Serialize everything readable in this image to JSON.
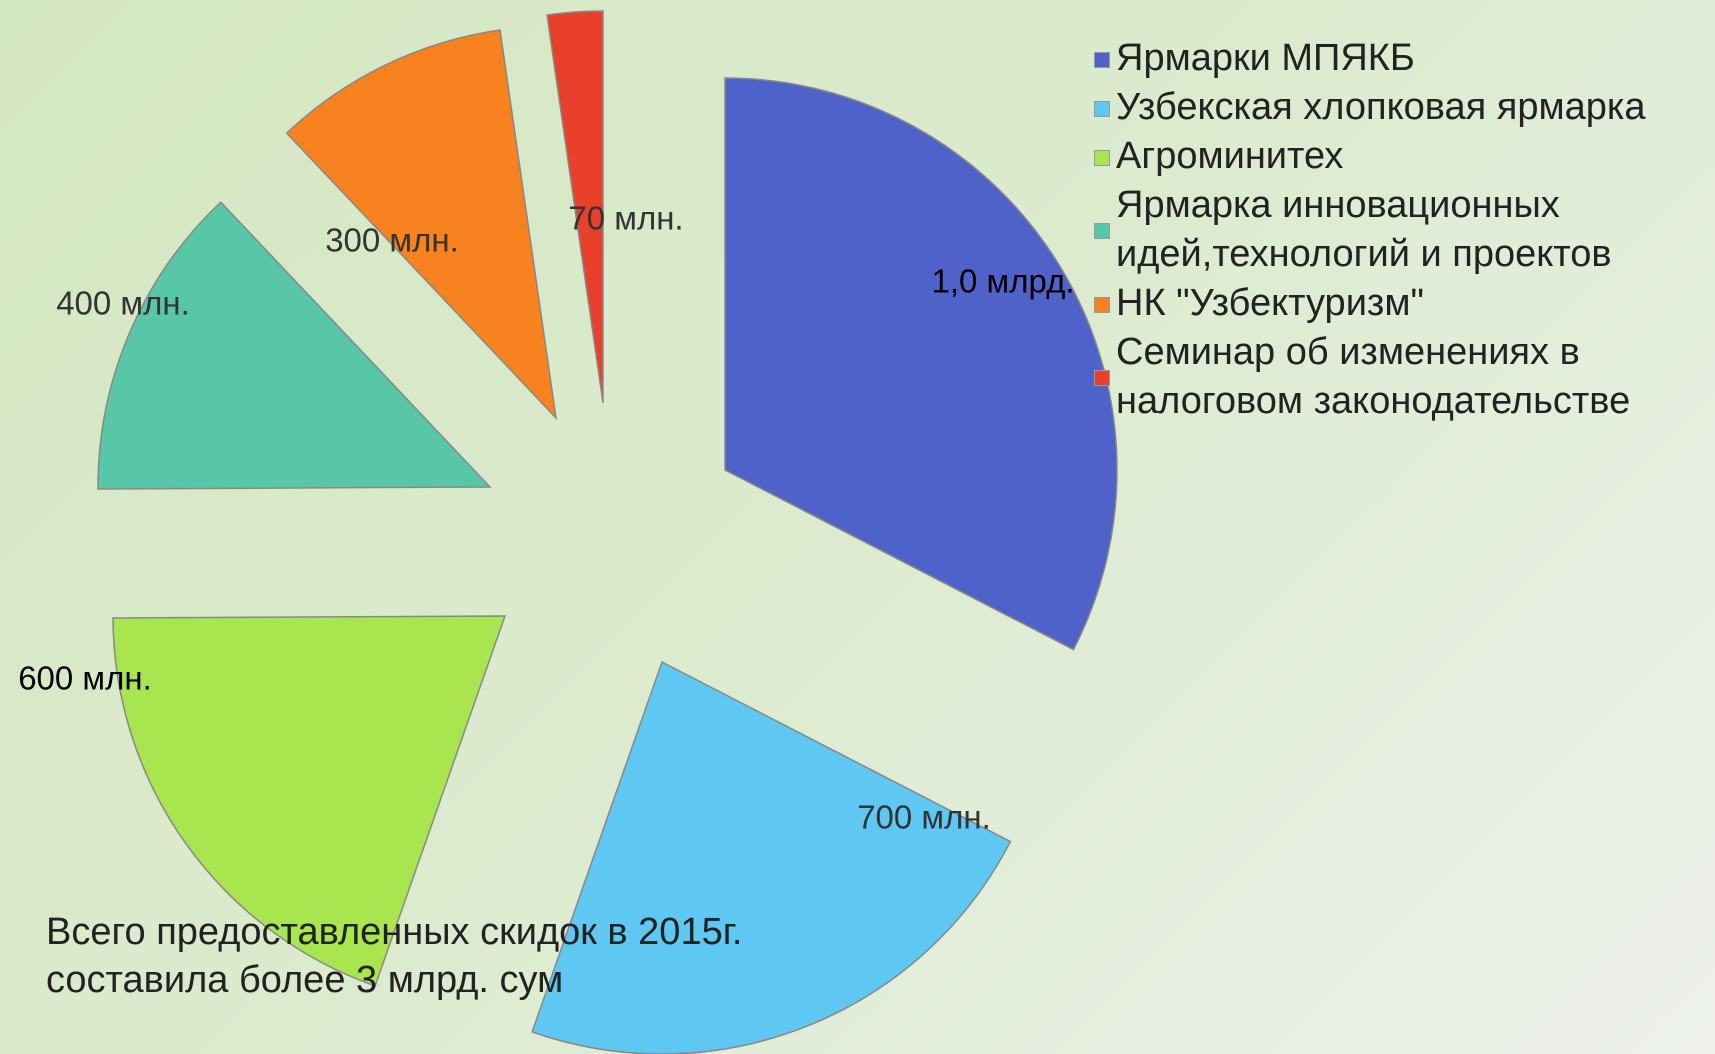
{
  "chart_data": {
    "type": "pie",
    "categories": [
      "Ярмарки МПЯКБ",
      "Узбекская хлопковая ярмарка",
      "Агроминитех",
      "Ярмарка инновационных идей,технологий и проектов",
      "НК \"Узбектуризм\"",
      "Семинар об изменениях в налоговом законодательстве"
    ],
    "values": [
      1000,
      700,
      600,
      400,
      300,
      70
    ],
    "value_labels": [
      "1,0 млрд.",
      "700 млн.",
      "600 млн.",
      "400 млн.",
      "300 млн.",
      "70 млн."
    ],
    "colors": [
      "#4f62c9",
      "#5ec8f2",
      "#a8e54e",
      "#58c7a8",
      "#f8821f",
      "#e8402a"
    ],
    "annotation": "Всего предоставленных скидок в 2015г. составила более 3 млрд. сум",
    "legend": "right"
  }
}
